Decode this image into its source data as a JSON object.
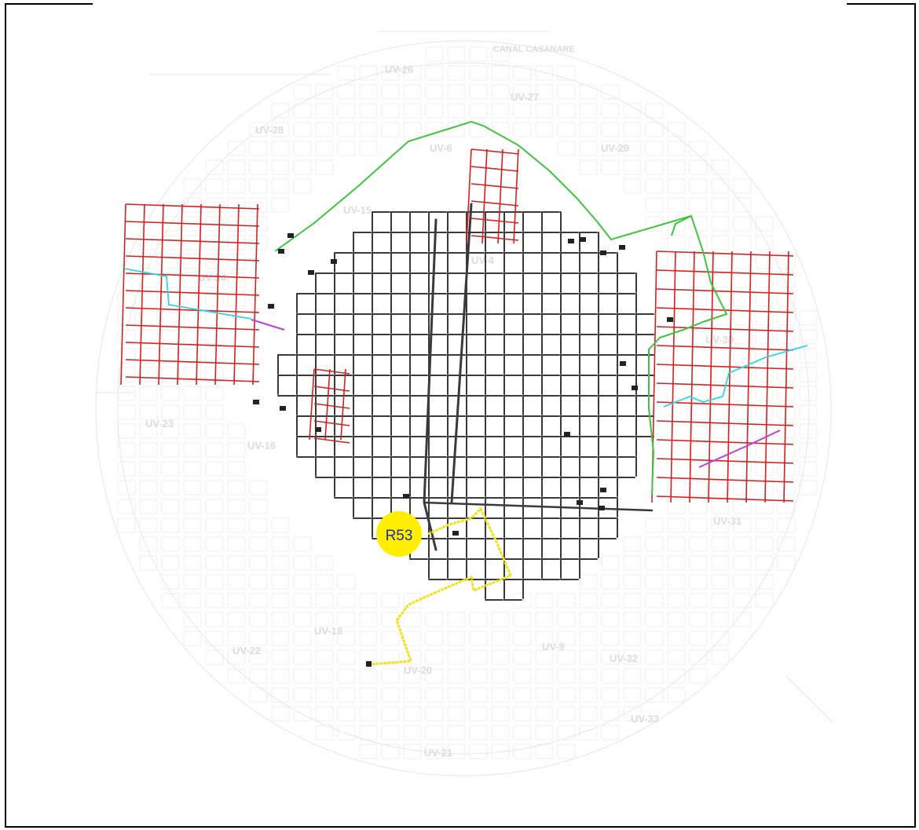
{
  "marker": {
    "label": "R53",
    "fill": "#ffee00",
    "text_color": "#1c2fa8"
  },
  "zones": {
    "z1": "UV-26",
    "z2": "UV-27",
    "z3": "UV-28",
    "z4": "UV-6",
    "z5": "UV-29",
    "z6": "UV-15",
    "z7": "UV-4",
    "z8": "UV-30",
    "z9": "UV-23",
    "z10": "UV-16",
    "z11": "UV-18",
    "z12": "UV-22",
    "z13": "UV-20",
    "z14": "UV-9",
    "z15": "UV-32",
    "z16": "UV-33",
    "z17": "UV-21",
    "z18": "UV-31",
    "z19": "UV-34"
  },
  "top_text": "CANAL CASANARE",
  "network_colors": {
    "existing": "#3a3a3a",
    "proposed": "#d42020",
    "boundary": "#3fc43f",
    "trunk": "#2fd7e0",
    "crossing": "#c23fd4",
    "route": "#f2e21a",
    "basemap": "#e2e2e2"
  }
}
